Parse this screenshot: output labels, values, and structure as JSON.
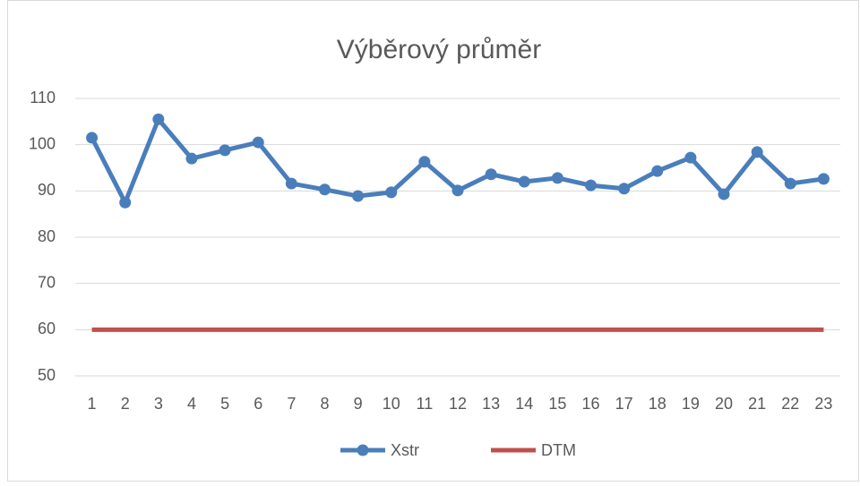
{
  "chart_data": {
    "type": "line",
    "title": "Výběrový průměr",
    "categories": [
      "1",
      "2",
      "3",
      "4",
      "5",
      "6",
      "7",
      "8",
      "9",
      "10",
      "11",
      "12",
      "13",
      "14",
      "15",
      "16",
      "17",
      "18",
      "19",
      "20",
      "21",
      "22",
      "23"
    ],
    "series": [
      {
        "name": "Xstr",
        "color": "#4a7ebb",
        "marker": true,
        "values": [
          101.5,
          87.5,
          105.5,
          97,
          98.8,
          100.5,
          91.6,
          90.3,
          88.9,
          89.7,
          96.3,
          90.1,
          93.6,
          92,
          92.8,
          91.2,
          90.5,
          94.3,
          97.2,
          89.3,
          98.4,
          91.6,
          92.6
        ]
      },
      {
        "name": "DTM",
        "color": "#c0504d",
        "marker": false,
        "values": [
          60,
          60,
          60,
          60,
          60,
          60,
          60,
          60,
          60,
          60,
          60,
          60,
          60,
          60,
          60,
          60,
          60,
          60,
          60,
          60,
          60,
          60,
          60
        ]
      }
    ],
    "ylim": [
      50,
      110
    ],
    "yticks": [
      50,
      60,
      70,
      80,
      90,
      100,
      110
    ],
    "grid": true,
    "legend": "bottom"
  }
}
